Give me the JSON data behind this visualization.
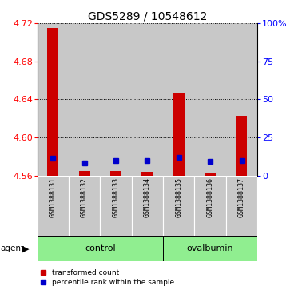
{
  "title": "GDS5289 / 10548612",
  "samples": [
    "GSM1388131",
    "GSM1388132",
    "GSM1388133",
    "GSM1388134",
    "GSM1388135",
    "GSM1388136",
    "GSM1388137"
  ],
  "red_values": [
    4.715,
    4.565,
    4.565,
    4.564,
    4.647,
    4.562,
    4.623
  ],
  "blue_values": [
    4.578,
    4.573,
    4.576,
    4.576,
    4.579,
    4.575,
    4.576
  ],
  "ymin": 4.56,
  "ymax": 4.72,
  "yticks": [
    4.56,
    4.6,
    4.64,
    4.68,
    4.72
  ],
  "right_yticks": [
    0,
    25,
    50,
    75,
    100
  ],
  "right_ytick_positions": [
    4.56,
    4.6,
    4.64,
    4.68,
    4.72
  ],
  "control_indices": [
    0,
    1,
    2,
    3
  ],
  "ovalbumin_indices": [
    4,
    5,
    6
  ],
  "bar_width": 0.35,
  "red_color": "#CC0000",
  "blue_color": "#0000CC",
  "bg_color": "#C8C8C8",
  "green_color": "#90EE90",
  "legend_red": "transformed count",
  "legend_blue": "percentile rank within the sample"
}
